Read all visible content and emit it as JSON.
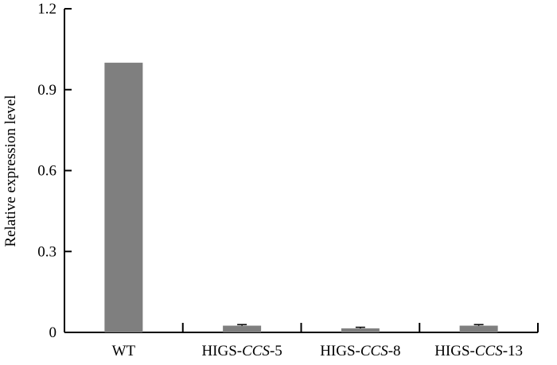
{
  "chart_data": {
    "type": "bar",
    "title": "",
    "xlabel": "",
    "ylabel": "Relative expression level",
    "ylim": [
      0,
      1.2
    ],
    "yticks": [
      "0",
      "0.3",
      "0.6",
      "0.9",
      "1.2"
    ],
    "ytick_values": [
      0,
      0.3,
      0.6,
      0.9,
      1.2
    ],
    "grid": false,
    "legend": "none",
    "categories": [
      {
        "plain": "WT",
        "prefix": "WT",
        "italic": "",
        "suffix": ""
      },
      {
        "plain": "HIGS-CCS-5",
        "prefix": "HIGS-",
        "italic": "CCS",
        "suffix": "-5"
      },
      {
        "plain": "HIGS-CCS-8",
        "prefix": "HIGS-",
        "italic": "CCS",
        "suffix": "-8"
      },
      {
        "plain": "HIGS-CCS-13",
        "prefix": "HIGS-",
        "italic": "CCS",
        "suffix": "-13"
      }
    ],
    "values": [
      1.0,
      0.025,
      0.015,
      0.025
    ],
    "errors": [
      0,
      0.004,
      0.004,
      0.004
    ],
    "bar_color": "#7f7f7f",
    "axis_color": "#000000"
  }
}
